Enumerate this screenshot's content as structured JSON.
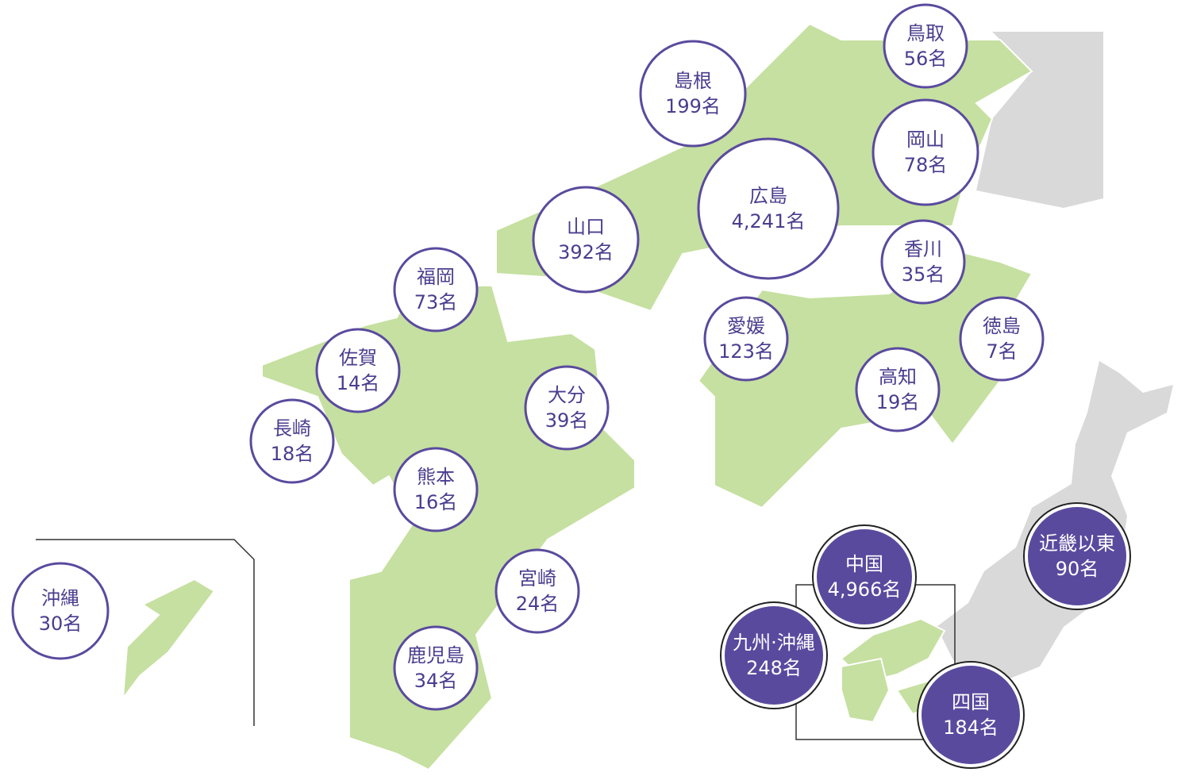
{
  "prefectures": [
    {
      "name": "鳥取",
      "count": "56名"
    },
    {
      "name": "島根",
      "count": "199名"
    },
    {
      "name": "岡山",
      "count": "78名"
    },
    {
      "name": "広島",
      "count": "4,241名"
    },
    {
      "name": "山口",
      "count": "392名"
    },
    {
      "name": "香川",
      "count": "35名"
    },
    {
      "name": "福岡",
      "count": "73名"
    },
    {
      "name": "愛媛",
      "count": "123名"
    },
    {
      "name": "徳島",
      "count": "7名"
    },
    {
      "name": "佐賀",
      "count": "14名"
    },
    {
      "name": "高知",
      "count": "19名"
    },
    {
      "name": "大分",
      "count": "39名"
    },
    {
      "name": "長崎",
      "count": "18名"
    },
    {
      "name": "熊本",
      "count": "16名"
    },
    {
      "name": "宮崎",
      "count": "24名"
    },
    {
      "name": "鹿児島",
      "count": "34名"
    },
    {
      "name": "沖縄",
      "count": "30名"
    }
  ],
  "regions": [
    {
      "name": "中国",
      "count": "4,966名"
    },
    {
      "name": "九州·沖縄",
      "count": "248名"
    },
    {
      "name": "四国",
      "count": "184名"
    },
    {
      "name": "近畿以東",
      "count": "90名"
    }
  ]
}
